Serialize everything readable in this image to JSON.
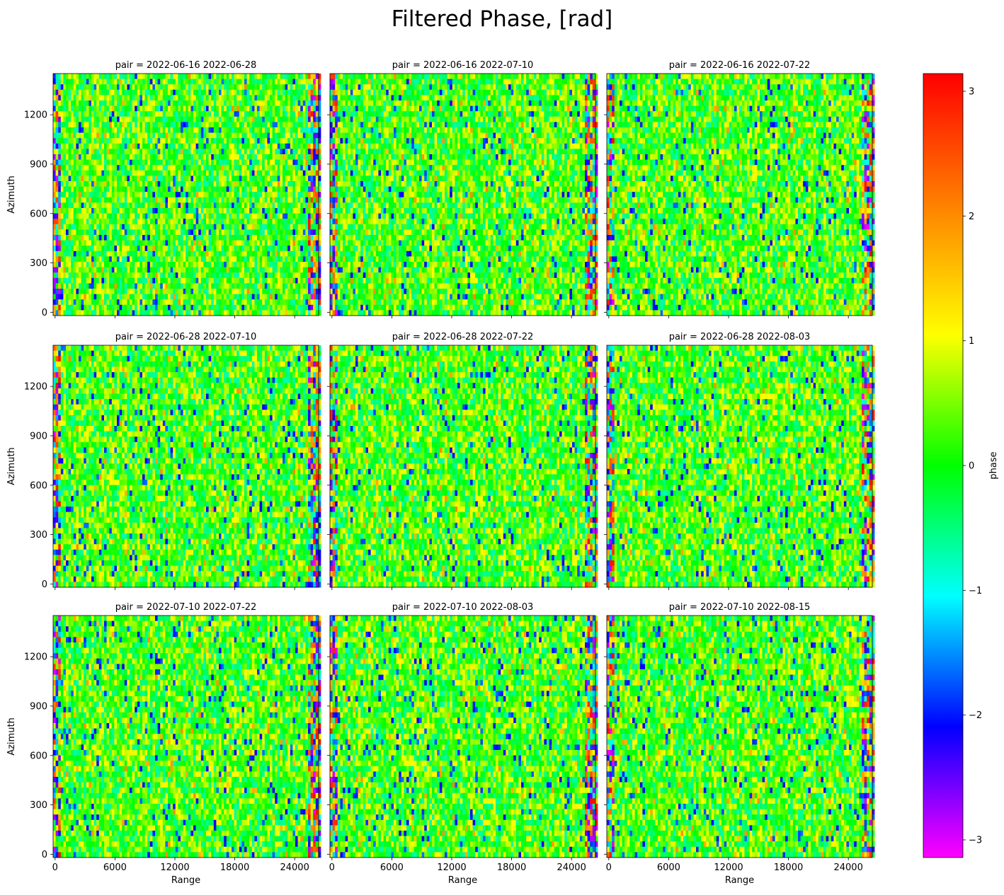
{
  "figure": {
    "title": "Filtered Phase, [rad]",
    "xlabel": "Range",
    "ylabel": "Azimuth",
    "colorbar_label": "phase"
  },
  "colors": {
    "colormap": "gist_rainbow_r",
    "colormap_stops": [
      "#ff00ff",
      "#0000ff",
      "#00ffff",
      "#00ff00",
      "#ffff00",
      "#ff8000",
      "#ff0000"
    ]
  },
  "chart_data": {
    "type": "heatmap",
    "layout": "3x3 facet grid",
    "x_axis": {
      "label": "Range",
      "lim": [
        -200,
        26400
      ],
      "ticks": [
        0,
        6000,
        12000,
        18000,
        24000
      ],
      "tick_labels": [
        "0",
        "6000",
        "12000",
        "18000",
        "24000"
      ]
    },
    "y_axis": {
      "label": "Azimuth",
      "lim": [
        -20,
        1450
      ],
      "ticks": [
        0,
        300,
        600,
        900,
        1200
      ],
      "tick_labels": [
        "0",
        "300",
        "600",
        "900",
        "1200"
      ]
    },
    "colorbar": {
      "label": "phase",
      "range": [
        -3.14159,
        3.14159
      ],
      "ticks": [
        -3,
        -2,
        -1,
        0,
        1,
        2,
        3
      ],
      "tick_labels": [
        "−3",
        "−2",
        "−1",
        "0",
        "1",
        "2",
        "3"
      ]
    },
    "panels": [
      {
        "title": "pair = 2022-06-16 2022-06-28",
        "row": 0,
        "col": 0
      },
      {
        "title": "pair = 2022-06-16 2022-07-10",
        "row": 0,
        "col": 1
      },
      {
        "title": "pair = 2022-06-16 2022-07-22",
        "row": 0,
        "col": 2
      },
      {
        "title": "pair = 2022-06-28 2022-07-10",
        "row": 1,
        "col": 0
      },
      {
        "title": "pair = 2022-06-28 2022-07-22",
        "row": 1,
        "col": 1
      },
      {
        "title": "pair = 2022-06-28 2022-08-03",
        "row": 1,
        "col": 2
      },
      {
        "title": "pair = 2022-07-10 2022-07-22",
        "row": 2,
        "col": 0
      },
      {
        "title": "pair = 2022-07-10 2022-08-03",
        "row": 2,
        "col": 1
      },
      {
        "title": "pair = 2022-07-10 2022-08-15",
        "row": 2,
        "col": 2
      }
    ]
  }
}
